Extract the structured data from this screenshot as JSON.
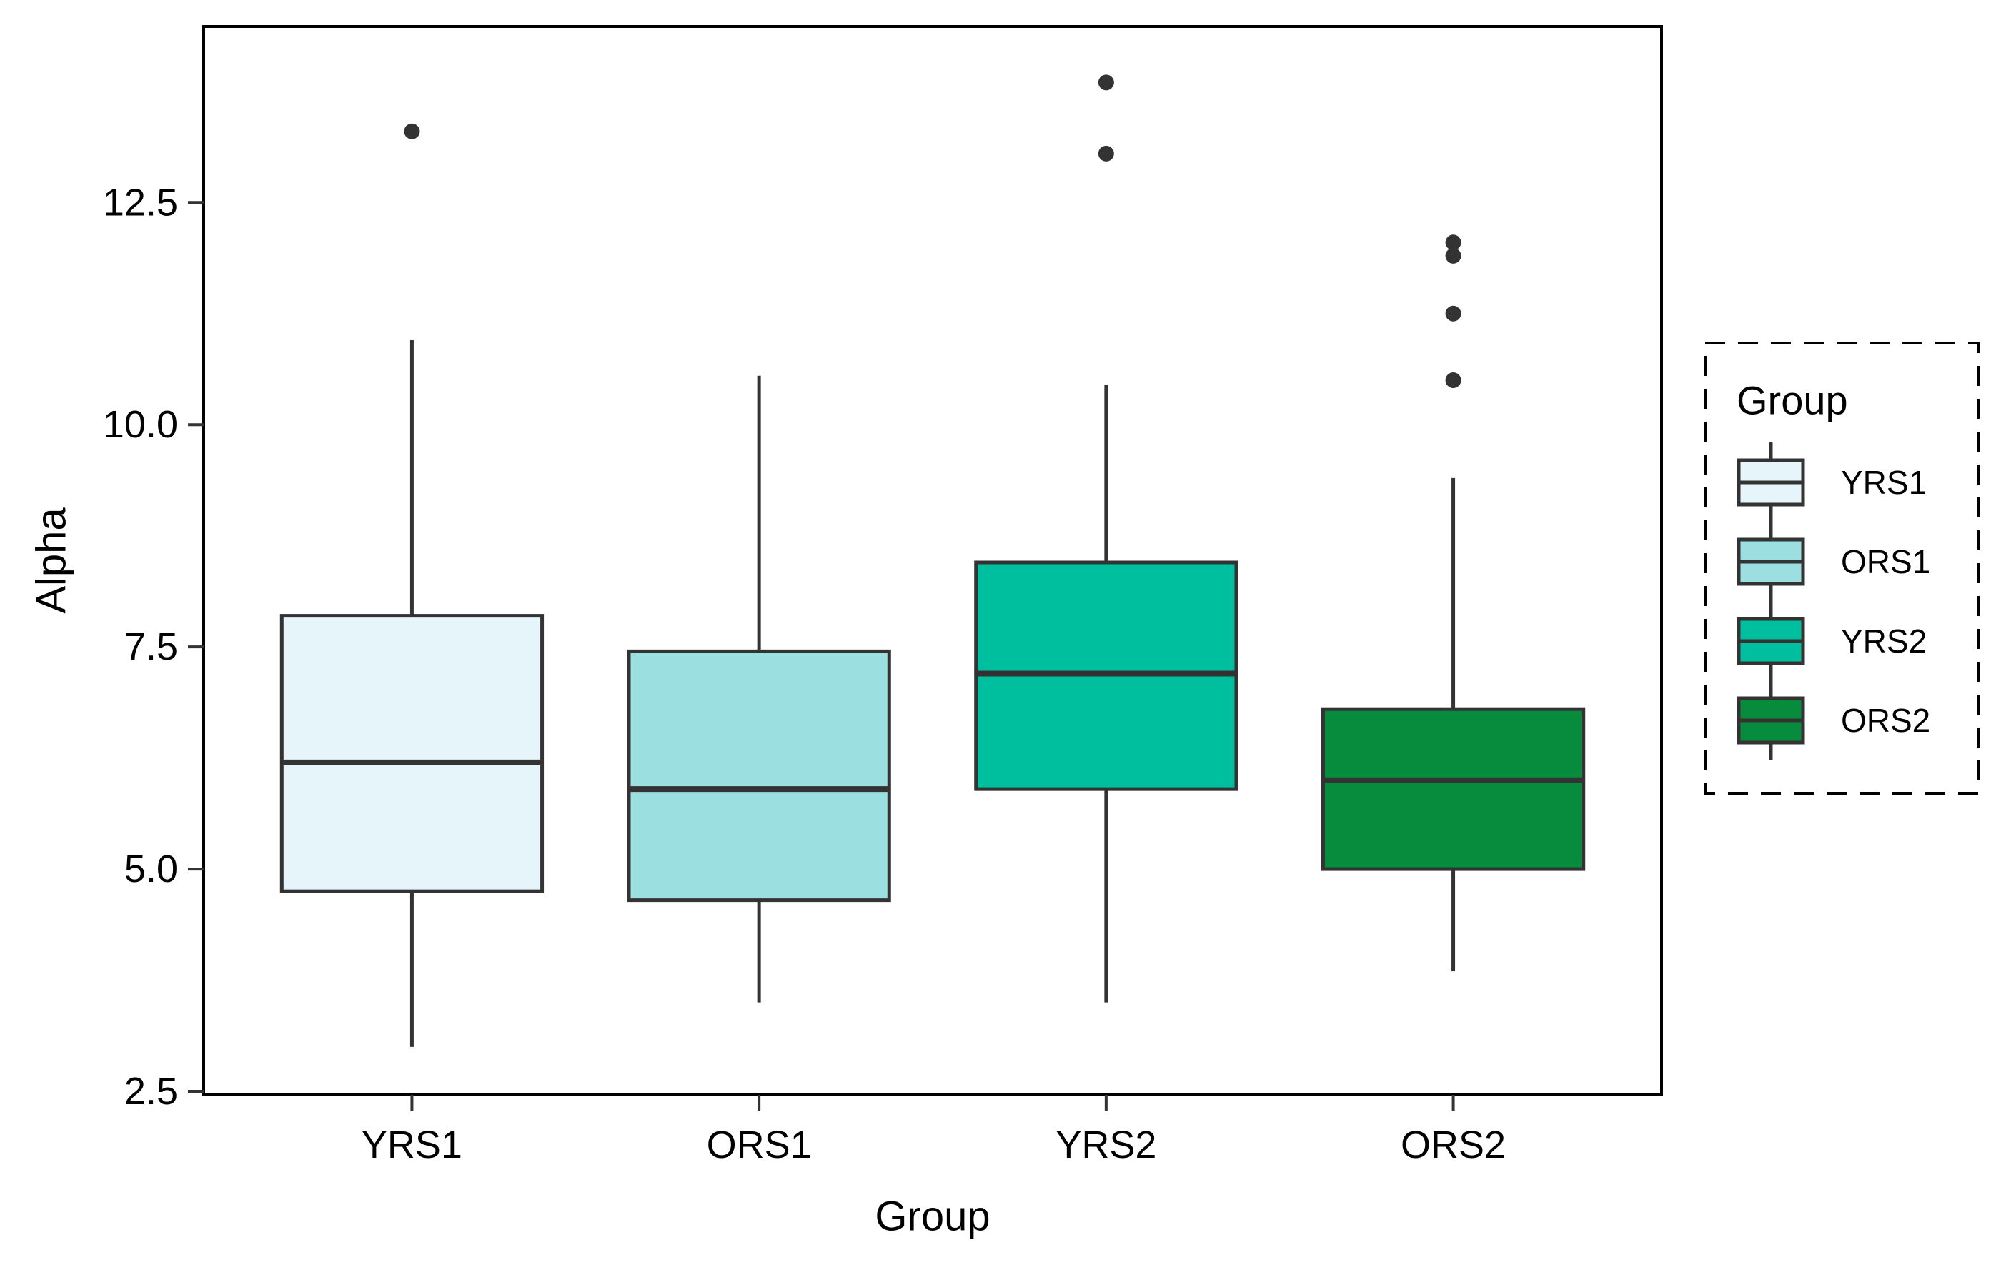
{
  "figure": {
    "kind": "ggplot-style boxplot figure",
    "background": "#ffffff",
    "panel_border_color": "#000000",
    "line_color": "#333333",
    "text_color": "#000000"
  },
  "chart_data": {
    "type": "boxplot",
    "title": "",
    "xlabel": "Group",
    "ylabel": "Alpha",
    "categories": [
      "YRS1",
      "ORS1",
      "YRS2",
      "ORS2"
    ],
    "y_ticks": [
      2.5,
      5.0,
      7.5,
      10.0,
      12.5
    ],
    "ylim": [
      2.46,
      14.48
    ],
    "grid": false,
    "legend_position": "right",
    "series": [
      {
        "name": "YRS1",
        "fill": "#E6F5F9",
        "min": 3.0,
        "q1": 4.75,
        "median": 6.2,
        "q3": 7.85,
        "max": 10.95,
        "outliers": [
          13.3
        ]
      },
      {
        "name": "ORS1",
        "fill": "#9CDFE0",
        "min": 3.5,
        "q1": 4.65,
        "median": 5.9,
        "q3": 7.45,
        "max": 10.55,
        "outliers": []
      },
      {
        "name": "YRS2",
        "fill": "#00BF9E",
        "min": 3.5,
        "q1": 5.9,
        "median": 7.2,
        "q3": 8.45,
        "max": 10.45,
        "outliers": [
          13.85,
          13.05
        ]
      },
      {
        "name": "ORS2",
        "fill": "#078C3D",
        "min": 3.85,
        "q1": 5.0,
        "median": 6.0,
        "q3": 6.8,
        "max": 9.4,
        "outliers": [
          12.05,
          11.9,
          11.25,
          10.5
        ]
      }
    ]
  },
  "legend": {
    "title": "Group",
    "border_style": "dashed",
    "entries": [
      {
        "label": "YRS1",
        "fill": "#E6F5F9"
      },
      {
        "label": "ORS1",
        "fill": "#9CDFE0"
      },
      {
        "label": "YRS2",
        "fill": "#00BF9E"
      },
      {
        "label": "ORS2",
        "fill": "#078C3D"
      }
    ]
  }
}
